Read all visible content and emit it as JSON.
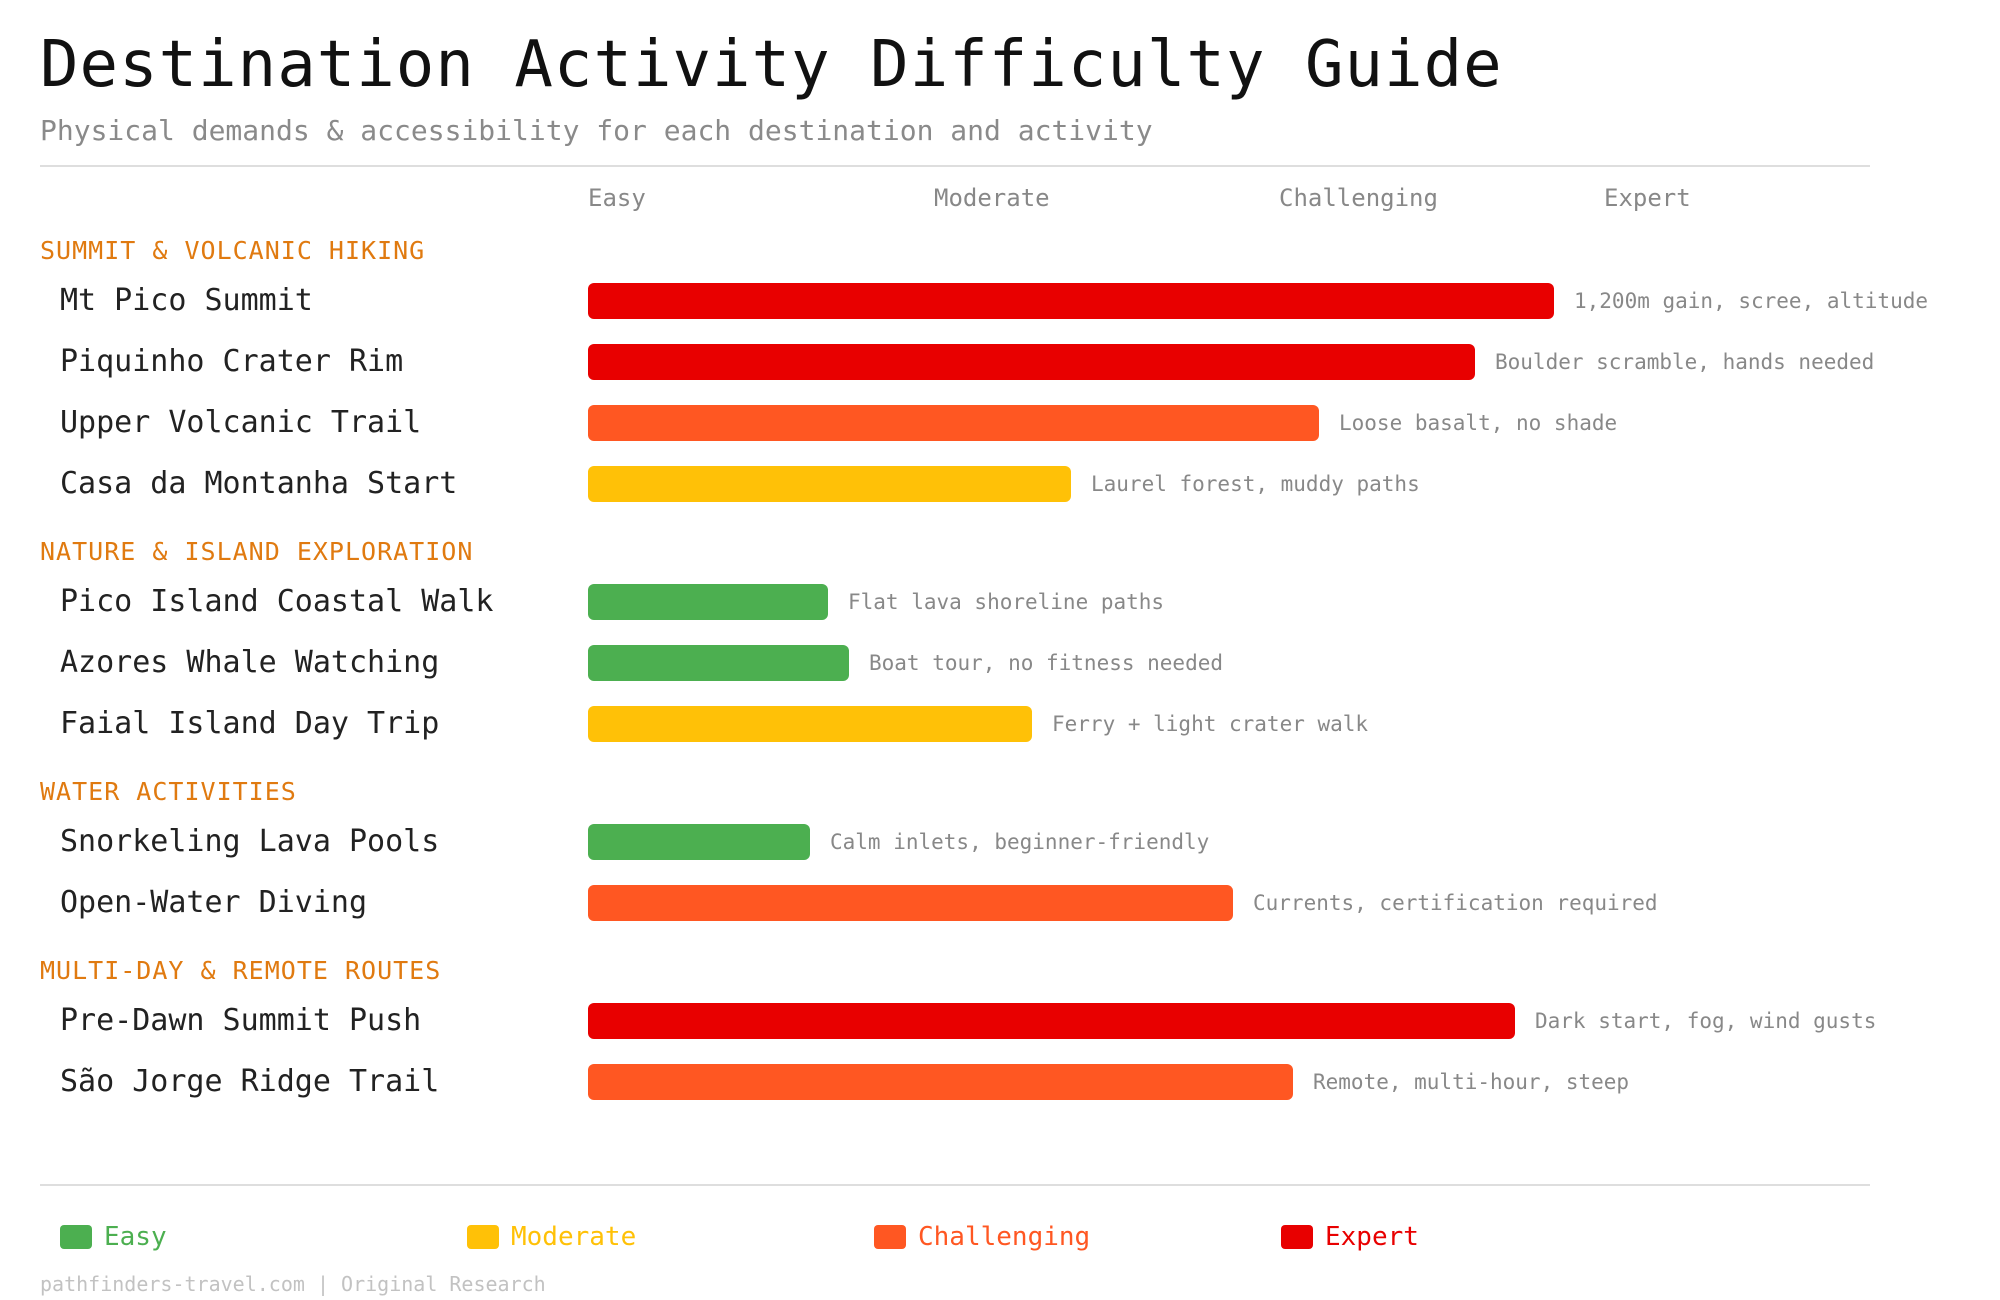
{
  "title": "Destination Activity Difficulty Guide",
  "subtitle": "Physical demands & accessibility for each destination and activity",
  "footer": "pathfinders-travel.com | Original Research",
  "colors": {
    "Easy": "#4caf50",
    "Moderate": "#ffc107",
    "Challenging": "#ff5722",
    "Expert": "#e80000",
    "group": "#e07a10"
  },
  "chart_data": {
    "type": "bar",
    "orientation": "horizontal",
    "scale_levels": [
      "Easy",
      "Moderate",
      "Challenging",
      "Expert"
    ],
    "xlim": [
      0,
      4
    ],
    "grid": false,
    "legend_position": "bottom",
    "groups": [
      {
        "name": "SUMMIT & VOLCANIC HIKING",
        "items": [
          {
            "label": "Mt Pico Summit",
            "value": 3.7,
            "level": "Expert",
            "note": "1,200m gain, scree, altitude"
          },
          {
            "label": "Piquinho Crater Rim",
            "value": 3.4,
            "level": "Expert",
            "note": "Boulder scramble, hands needed"
          },
          {
            "label": "Upper Volcanic Trail",
            "value": 2.8,
            "level": "Challenging",
            "note": "Loose basalt, no shade"
          },
          {
            "label": "Casa da Montanha Start",
            "value": 1.85,
            "level": "Moderate",
            "note": "Laurel forest, muddy paths"
          }
        ]
      },
      {
        "name": "NATURE & ISLAND EXPLORATION",
        "items": [
          {
            "label": "Pico Island Coastal Walk",
            "value": 0.92,
            "level": "Easy",
            "note": "Flat lava shoreline paths"
          },
          {
            "label": "Azores Whale Watching",
            "value": 1.0,
            "level": "Easy",
            "note": "Boat tour, no fitness needed"
          },
          {
            "label": "Faial Island Day Trip",
            "value": 1.7,
            "level": "Moderate",
            "note": "Ferry + light crater walk"
          }
        ]
      },
      {
        "name": "WATER ACTIVITIES",
        "items": [
          {
            "label": "Snorkeling Lava Pools",
            "value": 0.85,
            "level": "Easy",
            "note": "Calm inlets, beginner-friendly"
          },
          {
            "label": "Open-Water Diving",
            "value": 2.47,
            "level": "Challenging",
            "note": "Currents, certification required"
          }
        ]
      },
      {
        "name": "MULTI-DAY & REMOTE ROUTES",
        "items": [
          {
            "label": "Pre-Dawn Summit Push",
            "value": 3.55,
            "level": "Expert",
            "note": "Dark start, fog, wind gusts"
          },
          {
            "label": "São Jorge Ridge Trail",
            "value": 2.7,
            "level": "Challenging",
            "note": "Remote, multi-hour, steep"
          }
        ]
      }
    ]
  }
}
